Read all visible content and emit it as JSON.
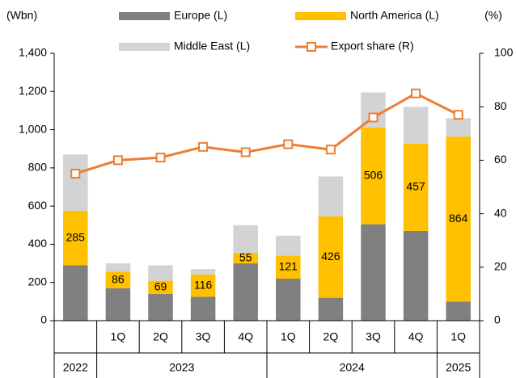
{
  "chart_data": {
    "type": "bar",
    "stacked": true,
    "y_unit": "(Wbn)",
    "y2_unit": "(%)",
    "categories": [
      null,
      "1Q",
      "2Q",
      "3Q",
      "4Q",
      "1Q",
      "2Q",
      "3Q",
      "4Q",
      "1Q"
    ],
    "category_groups": [
      {
        "label": "2022",
        "count": 1
      },
      {
        "label": "2023",
        "count": 4
      },
      {
        "label": "2024",
        "count": 4
      },
      {
        "label": "2025",
        "count": 1
      }
    ],
    "series": [
      {
        "name": "Europe (L)",
        "color": "#808080",
        "values": [
          290,
          170,
          140,
          125,
          300,
          220,
          120,
          505,
          470,
          100
        ]
      },
      {
        "name": "North America (L)",
        "color": "#FFC000",
        "values": [
          285,
          86,
          69,
          116,
          55,
          121,
          426,
          506,
          457,
          864
        ],
        "data_labels": true
      },
      {
        "name": "Middle East (L)",
        "color": "#D3D3D3",
        "values": [
          295,
          44,
          81,
          29,
          145,
          104,
          209,
          184,
          193,
          96
        ]
      },
      {
        "name": "Export share (R)",
        "color": "#ED7D31",
        "type": "line",
        "axis": "y2",
        "values": [
          55,
          60,
          61,
          65,
          63,
          66,
          64,
          76,
          85,
          77
        ]
      }
    ],
    "ylim": [
      0,
      1400
    ],
    "yticks": [
      0,
      200,
      400,
      600,
      800,
      {
        "value": 1000,
        "label": "1,000"
      },
      {
        "value": 1200,
        "label": "1,200"
      },
      {
        "value": 1400,
        "label": "1,400"
      }
    ],
    "y2lim": [
      0,
      100
    ],
    "y2ticks": [
      0,
      20,
      40,
      60,
      80,
      100
    ],
    "legend": "top"
  }
}
